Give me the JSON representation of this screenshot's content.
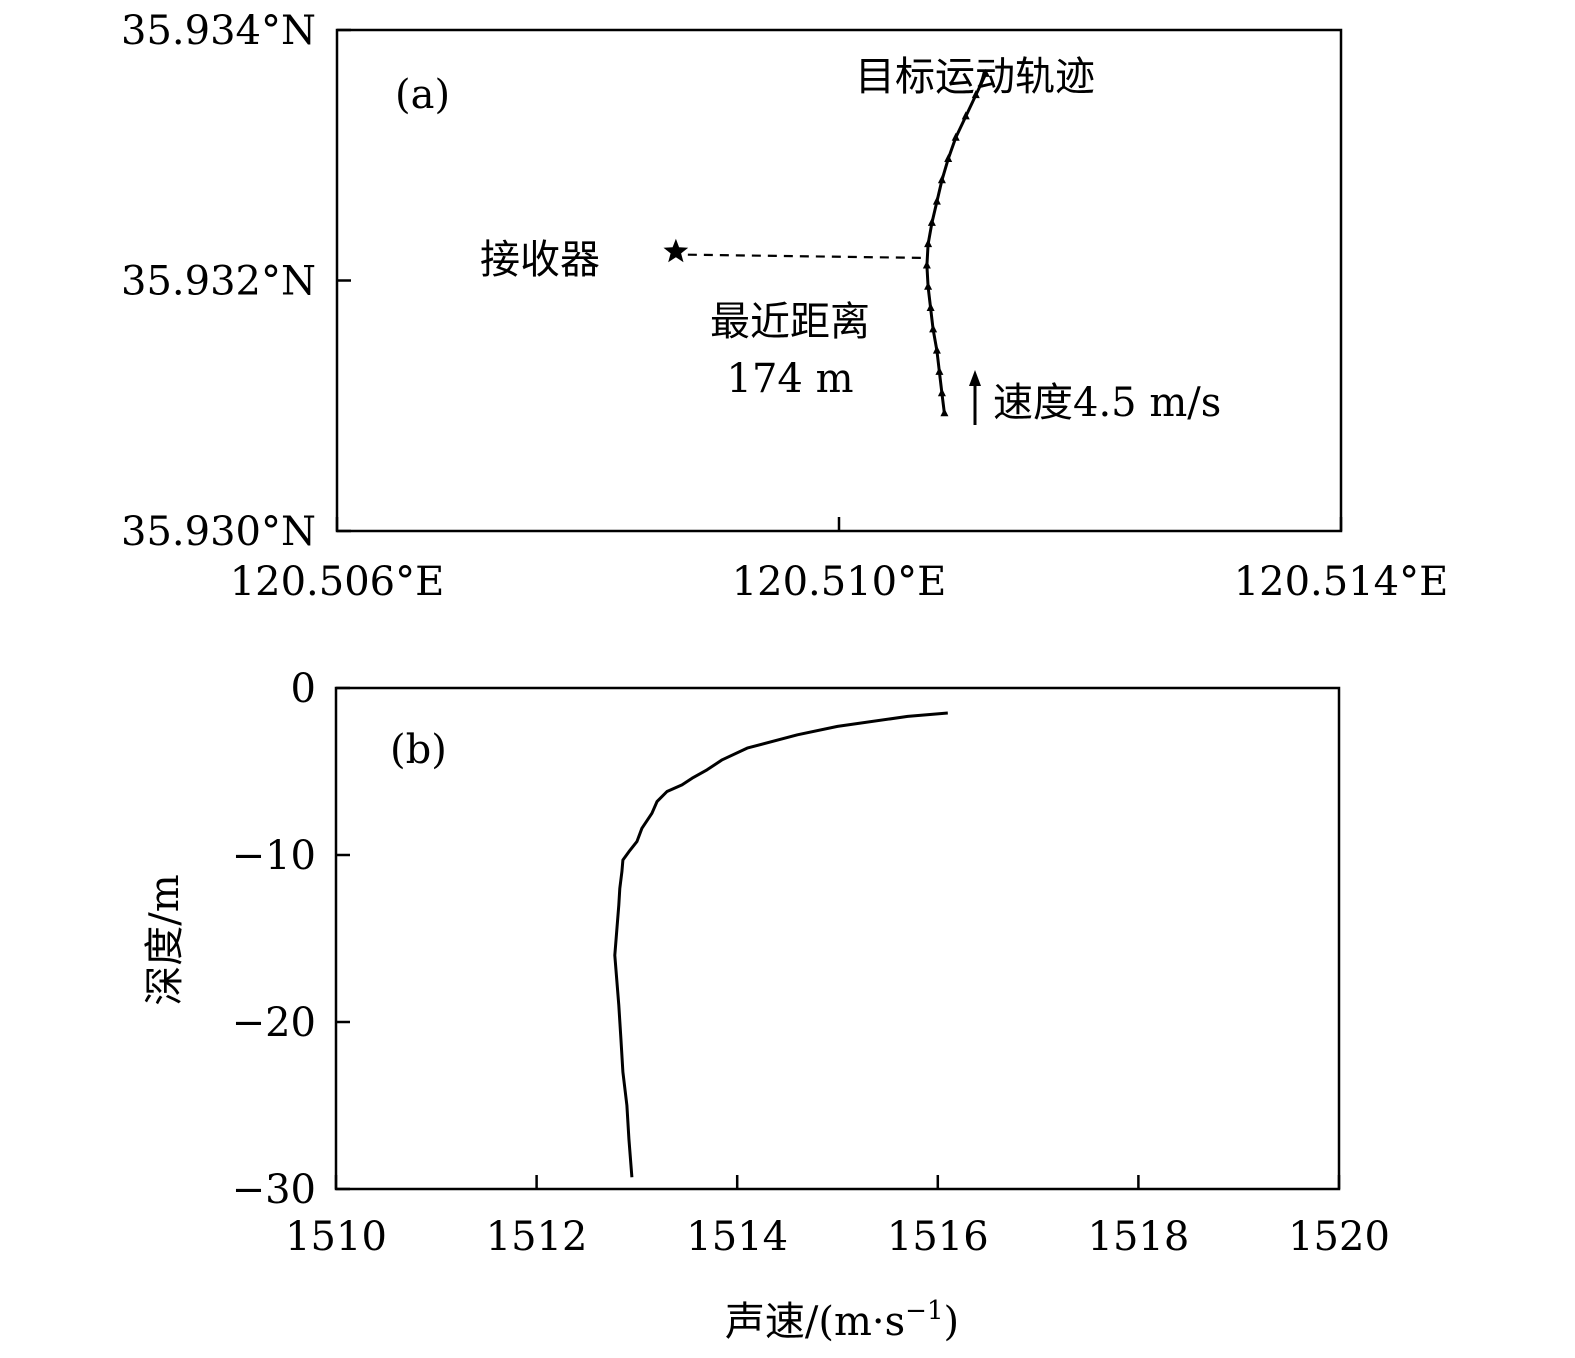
{
  "chart_data": [
    {
      "type": "line",
      "panel_label": "(a)",
      "title": "",
      "xlabel": "",
      "ylabel": "",
      "x_ticks": [
        120.506,
        120.51,
        120.514
      ],
      "x_tick_labels": [
        "120.506°E",
        "120.510°E",
        "120.514°E"
      ],
      "y_ticks": [
        35.93,
        35.932,
        35.934
      ],
      "y_tick_labels": [
        "35.930°N",
        "35.932°N",
        "35.934°N"
      ],
      "xlim": [
        120.506,
        120.514
      ],
      "ylim": [
        35.93,
        35.934
      ],
      "grid": false,
      "receiver": {
        "lon": 120.5087,
        "lat": 35.93223,
        "label": "接收器"
      },
      "trajectory": {
        "name": "目标运动轨迹",
        "lon": [
          120.51084,
          120.51082,
          120.5108,
          120.51078,
          120.51075,
          120.51073,
          120.51071,
          120.5107,
          120.51071,
          120.51074,
          120.51078,
          120.51082,
          120.51087,
          120.51093,
          120.51101,
          120.51109,
          120.51117
        ],
        "lat": [
          35.93094,
          35.9311,
          35.93127,
          35.93144,
          35.93161,
          35.93178,
          35.93195,
          35.93212,
          35.93229,
          35.93246,
          35.93263,
          35.9328,
          35.93297,
          35.93314,
          35.93331,
          35.93348,
          35.93365
        ]
      },
      "closest_point": {
        "lon": 120.5107,
        "lat": 35.93218
      },
      "distance_label": [
        "最近距离",
        "174 m"
      ],
      "speed_label": "速度4.5 m/s"
    },
    {
      "type": "line",
      "panel_label": "(b)",
      "title": "",
      "xlabel": "声速/(m·s",
      "xlabel_sup": "−1",
      "xlabel_tail": ")",
      "ylabel": "深度/m",
      "x_ticks": [
        1510,
        1512,
        1514,
        1516,
        1518,
        1520
      ],
      "x_tick_labels": [
        "1510",
        "1512",
        "1514",
        "1516",
        "1518",
        "1520"
      ],
      "y_ticks": [
        0,
        -10,
        -20,
        -30
      ],
      "y_tick_labels": [
        "0",
        "−10",
        "−20",
        "−30"
      ],
      "xlim": [
        1510,
        1520
      ],
      "ylim": [
        -30,
        0
      ],
      "grid": false,
      "series": [
        {
          "x": [
            1516.1,
            1515.7,
            1515.0,
            1514.6,
            1514.1,
            1513.85,
            1513.7,
            1513.55,
            1513.45,
            1513.3,
            1513.2,
            1513.15,
            1513.05,
            1513.0,
            1512.92,
            1512.86,
            1512.85,
            1512.83,
            1512.82,
            1512.8,
            1512.78,
            1512.8,
            1512.82,
            1512.84,
            1512.86,
            1512.9,
            1512.92,
            1512.95
          ],
          "y": [
            -1.5,
            -1.7,
            -2.3,
            -2.8,
            -3.6,
            -4.3,
            -4.9,
            -5.4,
            -5.8,
            -6.2,
            -6.8,
            -7.5,
            -8.4,
            -9.2,
            -9.8,
            -10.3,
            -11.0,
            -12.0,
            -13.0,
            -14.5,
            -16.0,
            -17.5,
            -19.0,
            -21.0,
            -23.0,
            -25.0,
            -27.0,
            -29.3
          ]
        }
      ]
    }
  ]
}
